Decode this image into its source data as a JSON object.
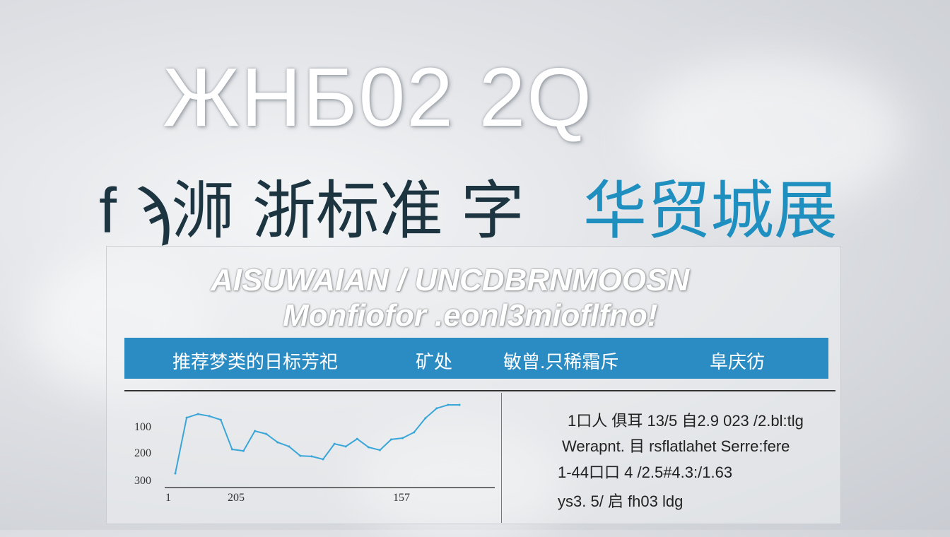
{
  "header": {
    "title": "ЖНБ02 2Q",
    "subtitle_dark": "f ϡ浉 浙标准 字",
    "subtitle_blue": "华贸城展"
  },
  "panel": {
    "tagline_1": "AISUWAIAN / UNCDBRNMOOSN",
    "tagline_2": "Monfiofor .eonl3mioflfno!",
    "bar_labels": [
      "推荐梦类的日标芳祀",
      "矿处",
      "敏曾.只稀霜斥",
      "阜庆彷"
    ],
    "info_lines": [
      "1口人 俱耳 13/5 自2.9 023 /2.bl:tlg",
      "Werapnt. 目 rsflatlahet Serre:fere",
      "1-44口口 4 /2.5#4.3:/1.63",
      "ys3. 5/ 启 fh03 ldg"
    ],
    "accent_color": "#2b8bc3"
  },
  "chart_data": {
    "type": "line",
    "title": "",
    "xlabel": "",
    "ylabel": "",
    "y_tick_labels": [
      "100",
      "200",
      "300"
    ],
    "x_tick_labels": [
      "1",
      "205",
      "157"
    ],
    "y_inverted": true,
    "ylim": [
      300,
      0
    ],
    "grid": false,
    "line_color": "#3aa6d8",
    "values": [
      281,
      68,
      54,
      62,
      76,
      189,
      195,
      119,
      130,
      162,
      178,
      214,
      216,
      227,
      168,
      178,
      149,
      181,
      192,
      151,
      146,
      124,
      70,
      32,
      19,
      19
    ]
  }
}
